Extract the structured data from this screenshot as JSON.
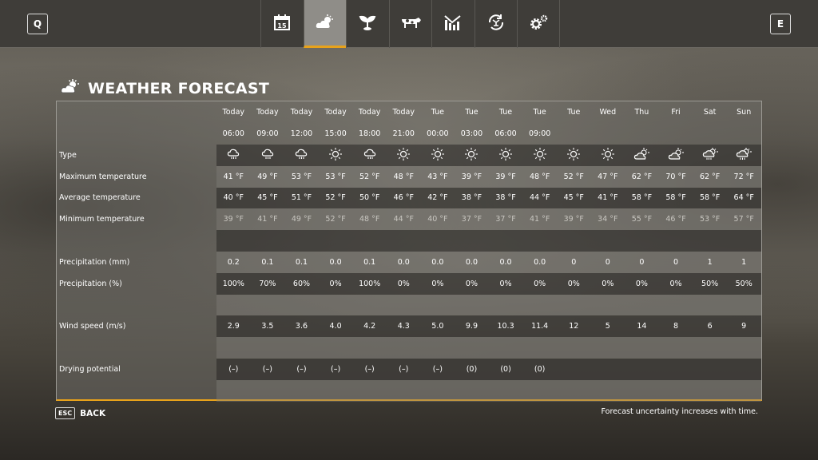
{
  "topbar": {
    "left_key": "Q",
    "right_key": "E",
    "tabs": [
      {
        "name": "calendar-icon",
        "label": "15"
      },
      {
        "name": "weather-icon"
      },
      {
        "name": "crops-icon"
      },
      {
        "name": "animals-icon"
      },
      {
        "name": "statistics-icon"
      },
      {
        "name": "contracts-icon"
      },
      {
        "name": "settings-icon"
      }
    ],
    "active_tab": 1,
    "accent": "#e8a21a"
  },
  "page": {
    "title": "WEATHER FORECAST"
  },
  "forecast": {
    "days": [
      "Today",
      "Today",
      "Today",
      "Today",
      "Today",
      "Today",
      "Tue",
      "Tue",
      "Tue",
      "Tue",
      "Tue",
      "Wed",
      "Thu",
      "Fri",
      "Sat",
      "Sun"
    ],
    "times": [
      "06:00",
      "09:00",
      "12:00",
      "15:00",
      "18:00",
      "21:00",
      "00:00",
      "03:00",
      "06:00",
      "09:00",
      "",
      "",
      "",
      "",
      "",
      ""
    ],
    "rows": [
      {
        "label": "Type",
        "icons": [
          "rain",
          "rain",
          "rain",
          "sun",
          "rain",
          "sun",
          "sun",
          "sun",
          "sun",
          "sun",
          "sun",
          "sun",
          "partly-cloudy",
          "partly-cloudy",
          "partly-cloudy-rain",
          "partly-cloudy-rain"
        ]
      },
      {
        "label": "Maximum temperature",
        "values": [
          "41 °F",
          "49 °F",
          "53 °F",
          "53 °F",
          "52 °F",
          "48 °F",
          "43 °F",
          "39 °F",
          "39 °F",
          "48 °F",
          "52 °F",
          "47 °F",
          "62 °F",
          "70 °F",
          "62 °F",
          "72 °F"
        ]
      },
      {
        "label": "Average temperature",
        "values": [
          "40 °F",
          "45 °F",
          "51 °F",
          "52 °F",
          "50 °F",
          "46 °F",
          "42 °F",
          "38 °F",
          "38 °F",
          "44 °F",
          "45 °F",
          "41 °F",
          "58 °F",
          "58 °F",
          "58 °F",
          "64 °F"
        ]
      },
      {
        "label": "Minimum temperature",
        "values": [
          "39 °F",
          "41 °F",
          "49 °F",
          "52 °F",
          "48 °F",
          "44 °F",
          "40 °F",
          "37 °F",
          "37 °F",
          "41 °F",
          "39 °F",
          "34 °F",
          "55 °F",
          "46 °F",
          "53 °F",
          "57 °F"
        ]
      },
      {
        "label": "",
        "values": []
      },
      {
        "label": "Precipitation (mm)",
        "values": [
          "0.2",
          "0.1",
          "0.1",
          "0.0",
          "0.1",
          "0.0",
          "0.0",
          "0.0",
          "0.0",
          "0.0",
          "0",
          "0",
          "0",
          "0",
          "1",
          "1"
        ]
      },
      {
        "label": "Precipitation (%)",
        "values": [
          "100%",
          "70%",
          "60%",
          "0%",
          "100%",
          "0%",
          "0%",
          "0%",
          "0%",
          "0%",
          "0%",
          "0%",
          "0%",
          "0%",
          "50%",
          "50%"
        ]
      },
      {
        "label": "",
        "values": []
      },
      {
        "label": "Wind speed (m/s)",
        "values": [
          "2.9",
          "3.5",
          "3.6",
          "4.0",
          "4.2",
          "4.3",
          "5.0",
          "9.9",
          "10.3",
          "11.4",
          "12",
          "5",
          "14",
          "8",
          "6",
          "9"
        ]
      },
      {
        "label": "",
        "values": []
      },
      {
        "label": "Drying potential",
        "values": [
          "(–)",
          "(–)",
          "(–)",
          "(–)",
          "(–)",
          "(–)",
          "(–)",
          "(0)",
          "(0)",
          "(0)",
          "",
          "",
          "",
          "",
          "",
          ""
        ]
      },
      {
        "label": "",
        "values": []
      }
    ]
  },
  "footer": {
    "esc_key": "ESC",
    "back_label": "BACK",
    "note": "Forecast uncertainty increases with time."
  }
}
